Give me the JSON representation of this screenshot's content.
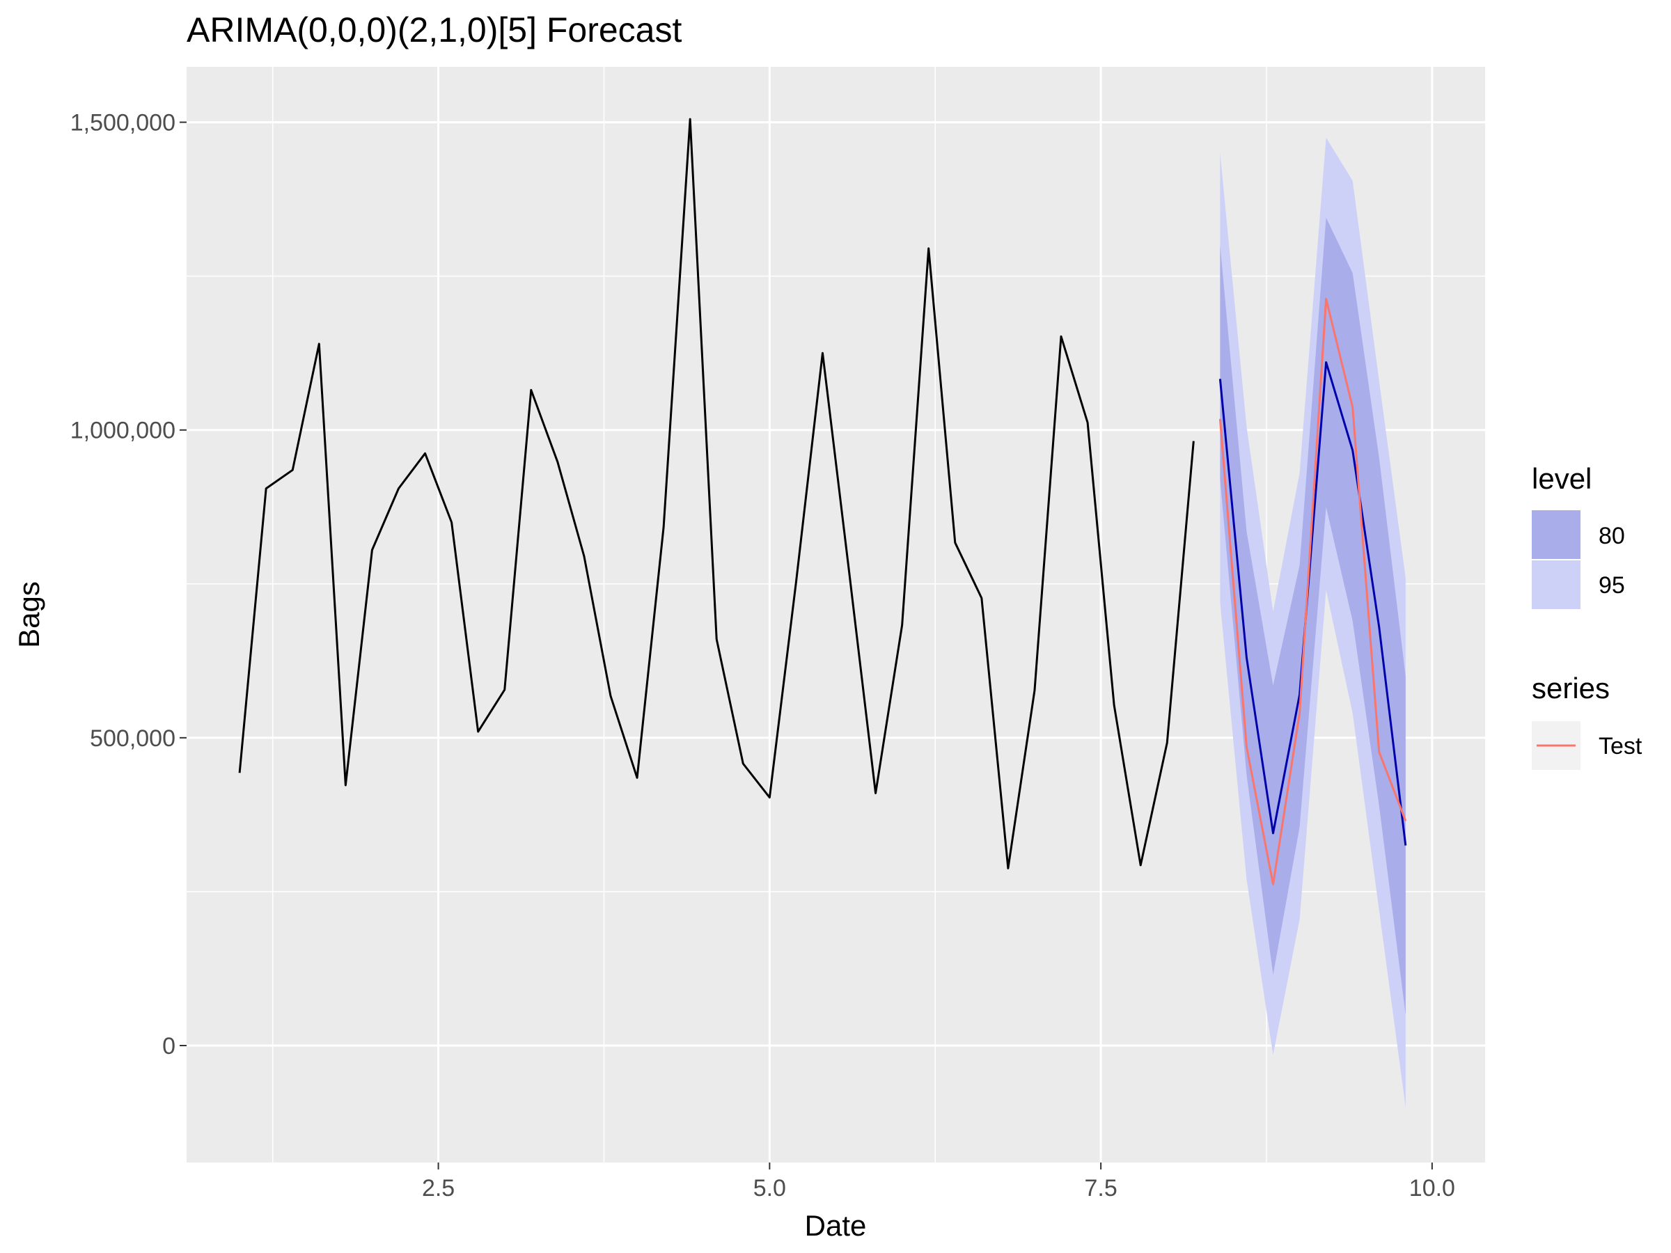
{
  "chart_data": {
    "type": "line",
    "title": "ARIMA(0,0,0)(2,1,0)[5] Forecast",
    "xlabel": "Date",
    "ylabel": "Bags",
    "xlim": [
      0.6,
      10.4
    ],
    "ylim": [
      -190000,
      1590000
    ],
    "x_ticks": [
      2.5,
      5.0,
      7.5,
      10.0
    ],
    "x_tick_labels": [
      "2.5",
      "5.0",
      "7.5",
      "10.0"
    ],
    "y_ticks": [
      0,
      500000,
      1000000,
      1500000
    ],
    "y_tick_labels": [
      "0",
      "500,000",
      "1,000,000",
      "1,500,000"
    ],
    "grid": true,
    "legend_position": "right",
    "colors": {
      "panel_background": "#ebebeb",
      "grid": "#ffffff",
      "history": "#000000",
      "forecast": "#0000aa",
      "test": "#f8766d",
      "band80": "#a9ade9",
      "band95": "#cdd0f7",
      "legend_key_background": "#f2f2f2"
    },
    "history": {
      "x": [
        1.0,
        1.2,
        1.4,
        1.6,
        1.8,
        2.0,
        2.2,
        2.4,
        2.6,
        2.8,
        3.0,
        3.2,
        3.4,
        3.6,
        3.8,
        4.0,
        4.2,
        4.4,
        4.6,
        4.8,
        5.0,
        5.2,
        5.4,
        5.6,
        5.8,
        6.0,
        6.2,
        6.4,
        6.6,
        6.8,
        7.0,
        7.2,
        7.4,
        7.6,
        7.8,
        8.0,
        8.2
      ],
      "y": [
        443000,
        905000,
        935000,
        1140000,
        423000,
        805000,
        905000,
        962000,
        850000,
        510000,
        578000,
        1065000,
        948000,
        795000,
        568000,
        435000,
        842000,
        1505000,
        660000,
        458000,
        403000,
        753000,
        1125000,
        770000,
        410000,
        683000,
        1295000,
        817000,
        727000,
        288000,
        577000,
        1152000,
        1012000,
        553000,
        293000,
        492000,
        982000
      ]
    },
    "forecast": {
      "x": [
        8.4,
        8.6,
        8.8,
        9.0,
        9.2,
        9.4,
        9.6,
        9.8
      ],
      "mean": [
        1083000,
        630000,
        345000,
        570000,
        1110000,
        967000,
        680000,
        325000
      ],
      "lo80": [
        920000,
        440000,
        115000,
        355000,
        875000,
        690000,
        390000,
        50000
      ],
      "hi80": [
        1300000,
        835000,
        585000,
        780000,
        1345000,
        1255000,
        955000,
        600000
      ],
      "lo95": [
        720000,
        270000,
        -15000,
        205000,
        740000,
        540000,
        220000,
        -100000
      ],
      "hi95": [
        1450000,
        1005000,
        705000,
        930000,
        1475000,
        1405000,
        1080000,
        760000
      ]
    },
    "series": [
      {
        "name": "Test",
        "x": [
          8.4,
          8.6,
          8.8,
          9.0,
          9.2,
          9.4,
          9.6,
          9.8
        ],
        "values": [
          1018000,
          485000,
          262000,
          540000,
          1213000,
          1037000,
          477000,
          365000
        ]
      }
    ],
    "legend": {
      "level_title": "level",
      "level_items": [
        "80",
        "95"
      ],
      "series_title": "series",
      "series_items": [
        "Test"
      ]
    }
  }
}
